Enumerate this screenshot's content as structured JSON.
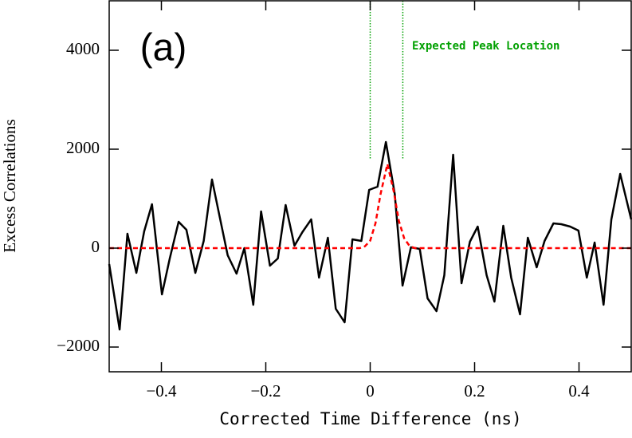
{
  "chart_data": {
    "type": "line",
    "panel_label": "(a)",
    "xlabel": "Corrected Time Difference (ns)",
    "ylabel": "Excess Correlations",
    "xlim": [
      -0.5,
      0.5
    ],
    "ylim": [
      -2500,
      5000
    ],
    "xticks": [
      {
        "value": -0.4,
        "label": "−0.4"
      },
      {
        "value": -0.2,
        "label": "−0.2"
      },
      0,
      0.2,
      0.4
    ],
    "yticks": [
      {
        "value": -2000,
        "label": "−2000"
      },
      0,
      2000,
      4000
    ],
    "series": [
      {
        "color": "#000000",
        "style": "solid",
        "x": [
          -0.5,
          -0.48,
          -0.465,
          -0.448,
          -0.433,
          -0.418,
          -0.399,
          -0.384,
          -0.367,
          -0.352,
          -0.335,
          -0.319,
          -0.303,
          -0.288,
          -0.273,
          -0.256,
          -0.241,
          -0.224,
          -0.209,
          -0.192,
          -0.177,
          -0.162,
          -0.145,
          -0.13,
          -0.113,
          -0.098,
          -0.081,
          -0.066,
          -0.049,
          -0.034,
          -0.017,
          -0.002,
          0.014,
          0.03,
          0.047,
          0.062,
          0.078,
          0.095,
          0.11,
          0.127,
          0.142,
          0.159,
          0.175,
          0.191,
          0.206,
          0.223,
          0.238,
          0.255,
          0.27,
          0.287,
          0.302,
          0.319,
          0.334,
          0.351,
          0.366,
          0.383,
          0.399,
          0.415,
          0.43,
          0.447,
          0.462,
          0.479,
          0.5
        ],
        "values": [
          -323,
          -1645,
          290,
          -500,
          339,
          887,
          -935,
          -210,
          532,
          371,
          -500,
          145,
          1387,
          613,
          -145,
          -516,
          0,
          -1145,
          742,
          -355,
          -210,
          871,
          48,
          323,
          581,
          -597,
          210,
          -1226,
          -1500,
          177,
          145,
          1177,
          1242,
          2145,
          1097,
          -758,
          16,
          -16,
          -1016,
          -1274,
          -548,
          1887,
          -710,
          129,
          435,
          -548,
          -1081,
          452,
          -597,
          -1339,
          210,
          -387,
          145,
          500,
          484,
          435,
          355,
          -597,
          113,
          -1145,
          581,
          1500,
          581
        ]
      },
      {
        "color": "#ff0000",
        "style": "dashed",
        "x": [
          -0.5,
          -0.02,
          -0.01,
          0,
          0.01,
          0.02,
          0.033,
          0.045,
          0.055,
          0.065,
          0.075,
          0.085,
          0.5
        ],
        "values": [
          0,
          0,
          37,
          150,
          500,
          1100,
          1700,
          1150,
          550,
          200,
          50,
          0,
          0
        ]
      }
    ],
    "peak_window": {
      "label": "Expected Peak Location",
      "color": "#00a000",
      "x": [
        0,
        0.0625
      ],
      "ymin": 1800
    }
  }
}
